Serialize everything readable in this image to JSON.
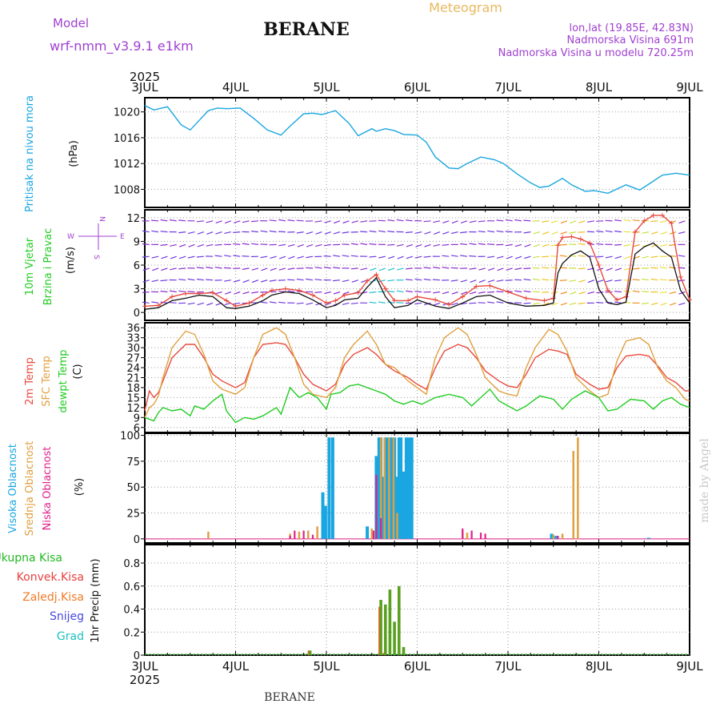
{
  "header": {
    "model_label": "Model",
    "model_name": "wrf-nmm_v3.9.1  e1km",
    "station": "BERANE",
    "meteogram": "Meteogram",
    "lonlat": "lon,lat (19.85E, 42.83N)",
    "elevation": "Nadmorska Visina 691m",
    "model_elevation": "Nadmorska Visina u modelu 720.25m",
    "year_top": "2025",
    "year_bottom": "2025",
    "footer_station": "BERANE",
    "watermark": "made by Angel"
  },
  "colors": {
    "pressure": "#1aa6e0",
    "temp2m": "#e84a3e",
    "sfc": "#e0a040",
    "dewpt": "#22cc22",
    "high": "#1aa6e0",
    "mid": "#e0a040",
    "low": "#e0208a",
    "total": "#22b822",
    "conv": "#e84040",
    "frozen": "#f07a28",
    "snow": "#4848e0",
    "grad": "#20c0c0",
    "purple": "#a040d0",
    "gold": "#e8b860"
  },
  "chart_data": [
    {
      "type": "line",
      "title": "",
      "ylabel_lines": [
        "Pritisak na nivou mora",
        "(hPa)"
      ],
      "x_ticks": [
        "3JUL",
        "4JUL",
        "5JUL",
        "6JUL",
        "7JUL",
        "8JUL",
        "9JUL"
      ],
      "ylim": [
        1005.2,
        1022.2
      ],
      "y_ticks": [
        1008,
        1012,
        1016,
        1020
      ],
      "series": [
        {
          "x": [
            0,
            0.1,
            0.25,
            0.4,
            0.5,
            0.7,
            0.8,
            0.9,
            1.05,
            1.2,
            1.35,
            1.5,
            1.6,
            1.75,
            1.85,
            1.95,
            2.1,
            2.25,
            2.35,
            2.5,
            2.55,
            2.65,
            2.75,
            2.85,
            3.0,
            3.1,
            3.2,
            3.35,
            3.45,
            3.55,
            3.7,
            3.85,
            3.95,
            4.1,
            4.25,
            4.35,
            4.45,
            4.6,
            4.7,
            4.85,
            4.95,
            5.1,
            5.3,
            5.45,
            5.55,
            5.7,
            5.85,
            6.0
          ],
          "values": [
            1021.0,
            1020.3,
            1020.8,
            1018.0,
            1017.2,
            1020.2,
            1020.6,
            1020.5,
            1020.6,
            1019.0,
            1017.2,
            1016.4,
            1017.8,
            1019.7,
            1019.8,
            1019.6,
            1020.2,
            1018.2,
            1016.3,
            1017.4,
            1017.0,
            1017.4,
            1017.1,
            1016.5,
            1016.4,
            1015.3,
            1013.0,
            1011.3,
            1011.2,
            1012.0,
            1013.0,
            1012.6,
            1012.0,
            1010.4,
            1009.0,
            1008.3,
            1008.5,
            1009.7,
            1008.7,
            1007.7,
            1007.8,
            1007.4,
            1008.7,
            1007.9,
            1008.8,
            1010.2,
            1010.5,
            1010.2
          ]
        }
      ]
    },
    {
      "type": "line",
      "title": "",
      "ylabel_lines": [
        "10m Vjetar",
        "Brzina i Pravac",
        "(m/s)"
      ],
      "compass": [
        "N",
        "S",
        "W",
        "E"
      ],
      "x_ticks": [
        "3JUL",
        "4JUL",
        "5JUL",
        "6JUL",
        "7JUL",
        "8JUL",
        "9JUL"
      ],
      "ylim": [
        -1,
        13
      ],
      "y_ticks": [
        0,
        3,
        6,
        9,
        12
      ],
      "series": [
        {
          "name": "speed",
          "x": [
            0,
            0.15,
            0.3,
            0.45,
            0.6,
            0.75,
            0.9,
            1.0,
            1.15,
            1.3,
            1.4,
            1.55,
            1.7,
            1.85,
            2.0,
            2.1,
            2.2,
            2.35,
            2.45,
            2.55,
            2.65,
            2.75,
            2.9,
            3.0,
            3.2,
            3.35,
            3.5,
            3.65,
            3.8,
            4.0,
            4.2,
            4.4,
            4.5,
            4.55,
            4.6,
            4.7,
            4.8,
            4.9,
            5.0,
            5.1,
            5.2,
            5.3,
            5.4,
            5.5,
            5.6,
            5.7,
            5.8,
            5.9,
            6.0
          ],
          "values": [
            0.4,
            0.6,
            1.5,
            1.8,
            2.2,
            2.0,
            0.6,
            0.5,
            0.8,
            1.5,
            2.2,
            2.6,
            2.4,
            1.6,
            0.6,
            0.9,
            1.6,
            1.8,
            3.2,
            4.4,
            2.0,
            0.6,
            0.9,
            1.6,
            0.8,
            0.5,
            1.2,
            2.0,
            2.2,
            1.2,
            0.8,
            0.9,
            1.2,
            5.0,
            6.2,
            7.3,
            7.8,
            7.0,
            3.0,
            1.2,
            1.0,
            1.3,
            7.4,
            8.3,
            8.8,
            7.8,
            7.0,
            2.8,
            1.2
          ]
        },
        {
          "name": "gust",
          "x": [
            0,
            0.15,
            0.3,
            0.45,
            0.6,
            0.75,
            0.9,
            1.0,
            1.15,
            1.3,
            1.4,
            1.55,
            1.7,
            1.85,
            2.0,
            2.1,
            2.2,
            2.35,
            2.45,
            2.55,
            2.65,
            2.75,
            2.9,
            3.0,
            3.2,
            3.35,
            3.5,
            3.65,
            3.8,
            4.0,
            4.2,
            4.4,
            4.5,
            4.55,
            4.6,
            4.7,
            4.8,
            4.9,
            5.0,
            5.1,
            5.2,
            5.3,
            5.4,
            5.5,
            5.6,
            5.7,
            5.8,
            5.9,
            6.0
          ],
          "values": [
            0.8,
            0.9,
            2.0,
            2.4,
            2.4,
            2.5,
            1.5,
            0.8,
            1.2,
            2.2,
            2.8,
            3.0,
            2.8,
            2.2,
            1.2,
            1.5,
            2.2,
            2.5,
            4.0,
            4.8,
            3.0,
            1.5,
            1.5,
            2.0,
            1.6,
            1.0,
            2.0,
            3.3,
            3.4,
            2.6,
            1.8,
            1.5,
            1.8,
            8.5,
            9.5,
            9.6,
            9.3,
            8.8,
            6.0,
            2.8,
            1.6,
            2.0,
            10.2,
            11.6,
            12.3,
            12.3,
            11.3,
            4.5,
            1.6
          ]
        }
      ]
    },
    {
      "type": "line",
      "title": "",
      "ylabel_lines": [
        "2m Temp",
        "SFC Temp",
        "dewpt Temp",
        "(C)"
      ],
      "x_ticks": [
        "3JUL",
        "4JUL",
        "5JUL",
        "6JUL",
        "7JUL",
        "8JUL",
        "9JUL"
      ],
      "ylim": [
        4.5,
        37.5
      ],
      "y_ticks": [
        6,
        9,
        12,
        15,
        18,
        21,
        24,
        27,
        30,
        33,
        36
      ],
      "series": [
        {
          "name": "2m Temp",
          "x": [
            0,
            0.05,
            0.1,
            0.15,
            0.2,
            0.3,
            0.45,
            0.55,
            0.65,
            0.75,
            0.85,
            1.0,
            1.1,
            1.2,
            1.3,
            1.45,
            1.55,
            1.65,
            1.75,
            1.85,
            2.0,
            2.1,
            2.2,
            2.3,
            2.45,
            2.55,
            2.65,
            2.75,
            2.9,
            3.0,
            3.1,
            3.2,
            3.3,
            3.45,
            3.55,
            3.65,
            3.75,
            3.9,
            4.0,
            4.1,
            4.2,
            4.3,
            4.45,
            4.55,
            4.65,
            4.75,
            4.9,
            5.0,
            5.1,
            5.2,
            5.3,
            5.45,
            5.55,
            5.65,
            5.75,
            5.85,
            5.95,
            6.0
          ],
          "values": [
            11.0,
            17.0,
            15.0,
            16.5,
            20.0,
            27.0,
            31.0,
            31.0,
            27.0,
            22.0,
            20.0,
            18.0,
            19.5,
            27.0,
            31.0,
            31.5,
            31.0,
            27.0,
            22.0,
            19.0,
            17.0,
            19.0,
            25.0,
            28.0,
            30.0,
            28.0,
            25.0,
            23.0,
            21.0,
            19.0,
            17.5,
            24.0,
            29.0,
            31.0,
            30.0,
            27.0,
            23.0,
            20.0,
            18.5,
            18.0,
            22.0,
            27.0,
            29.5,
            29.0,
            28.0,
            22.0,
            19.0,
            17.5,
            18.0,
            24.0,
            27.5,
            28.0,
            27.5,
            24.5,
            21.0,
            19.5,
            17.0,
            17.0
          ]
        },
        {
          "name": "SFC Temp",
          "x": [
            0,
            0.05,
            0.1,
            0.15,
            0.2,
            0.3,
            0.45,
            0.55,
            0.65,
            0.75,
            0.85,
            1.0,
            1.1,
            1.2,
            1.3,
            1.45,
            1.55,
            1.65,
            1.75,
            1.85,
            2.0,
            2.1,
            2.2,
            2.3,
            2.45,
            2.55,
            2.65,
            2.75,
            2.9,
            3.0,
            3.1,
            3.2,
            3.3,
            3.45,
            3.55,
            3.65,
            3.75,
            3.9,
            4.0,
            4.1,
            4.2,
            4.3,
            4.45,
            4.55,
            4.65,
            4.75,
            4.9,
            5.0,
            5.1,
            5.2,
            5.3,
            5.45,
            5.55,
            5.65,
            5.75,
            5.85,
            5.95,
            6.0
          ],
          "values": [
            9.0,
            12.0,
            13.0,
            15.5,
            21.0,
            30.0,
            35.0,
            34.0,
            28.0,
            20.0,
            17.5,
            16.0,
            18.0,
            27.0,
            34.0,
            36.0,
            34.0,
            27.0,
            19.0,
            16.0,
            15.0,
            18.0,
            27.0,
            31.0,
            35.0,
            31.0,
            25.0,
            24.0,
            20.0,
            18.0,
            16.0,
            27.0,
            33.0,
            36.0,
            34.0,
            28.0,
            21.0,
            17.0,
            16.0,
            15.5,
            24.0,
            30.0,
            35.5,
            34.0,
            29.0,
            21.0,
            17.0,
            15.0,
            16.0,
            26.0,
            32.0,
            33.0,
            31.0,
            24.0,
            20.0,
            18.0,
            14.5,
            14.0
          ]
        },
        {
          "name": "dewpt Temp",
          "x": [
            0,
            0.1,
            0.15,
            0.2,
            0.3,
            0.4,
            0.5,
            0.55,
            0.65,
            0.75,
            0.85,
            0.9,
            1.0,
            1.1,
            1.2,
            1.3,
            1.45,
            1.5,
            1.6,
            1.7,
            1.8,
            1.9,
            2.0,
            2.05,
            2.15,
            2.25,
            2.35,
            2.45,
            2.55,
            2.65,
            2.75,
            2.85,
            2.95,
            3.05,
            3.2,
            3.35,
            3.5,
            3.6,
            3.7,
            3.8,
            3.9,
            4.0,
            4.1,
            4.2,
            4.35,
            4.5,
            4.6,
            4.7,
            4.85,
            5.0,
            5.1,
            5.2,
            5.35,
            5.5,
            5.6,
            5.7,
            5.8,
            5.9,
            6.0
          ],
          "values": [
            9.0,
            8.0,
            10.5,
            12.0,
            11.0,
            11.5,
            9.5,
            12.5,
            11.5,
            14.0,
            16.0,
            11.0,
            7.5,
            9.0,
            8.5,
            9.5,
            12.0,
            10.0,
            18.0,
            15.0,
            16.5,
            15.0,
            11.5,
            16.0,
            16.5,
            18.5,
            19.0,
            18.0,
            17.0,
            16.0,
            14.0,
            13.0,
            14.0,
            13.0,
            15.0,
            16.0,
            15.0,
            12.5,
            15.0,
            17.5,
            14.0,
            12.5,
            11.0,
            12.5,
            15.5,
            14.5,
            11.5,
            14.5,
            17.0,
            15.0,
            11.0,
            11.5,
            14.5,
            14.0,
            11.5,
            14.0,
            15.0,
            13.0,
            12.0
          ]
        }
      ]
    },
    {
      "type": "bar",
      "title": "",
      "ylabel_lines": [
        "Visoka Oblacnost",
        "Srednja Oblacnost",
        "Niska Oblacnost",
        "(%)"
      ],
      "x_ticks": [
        "3JUL",
        "4JUL",
        "5JUL",
        "6JUL",
        "7JUL",
        "8JUL",
        "9JUL"
      ],
      "ylim": [
        -4,
        102
      ],
      "y_ticks": [
        0,
        25,
        50,
        75,
        100
      ],
      "series": [
        {
          "name": "Visoka Oblacnost",
          "x": [
            1.96,
            1.99,
            2.03,
            2.07,
            2.45,
            2.55,
            2.58,
            2.6,
            2.62,
            2.65,
            2.67,
            2.7,
            2.72,
            2.75,
            2.77,
            2.8,
            2.82,
            2.85,
            2.88,
            2.91,
            2.94,
            4.48,
            4.53,
            5.55
          ],
          "values": [
            45,
            32,
            98,
            98,
            12,
            80,
            98,
            98,
            60,
            98,
            98,
            98,
            98,
            98,
            60,
            98,
            98,
            65,
            98,
            98,
            98,
            5,
            3,
            1
          ]
        },
        {
          "name": "Srednja Oblacnost",
          "x": [
            0.7,
            1.6,
            1.7,
            1.8,
            1.9,
            2.5,
            2.6,
            2.64,
            2.69,
            2.74,
            2.78,
            3.5,
            3.55,
            4.5,
            4.6,
            4.72,
            4.77
          ],
          "values": [
            7,
            5,
            7,
            8,
            12,
            10,
            98,
            98,
            98,
            98,
            25,
            8,
            6,
            4,
            5,
            85,
            98
          ]
        },
        {
          "name": "Niska Oblacnost",
          "x": [
            1.6,
            1.65,
            1.75,
            1.85,
            2.52,
            2.55,
            2.6,
            3.5,
            3.6,
            3.7,
            3.75,
            4.55
          ],
          "values": [
            3,
            8,
            8,
            4,
            8,
            62,
            20,
            10,
            8,
            6,
            5,
            3
          ]
        }
      ]
    },
    {
      "type": "bar",
      "title": "",
      "ylabel_lines": [
        "1hr Precip (mm)"
      ],
      "x_ticks": [
        "3JUL",
        "4JUL",
        "5JUL",
        "6JUL",
        "7JUL",
        "8JUL",
        "9JUL"
      ],
      "ylim": [
        0,
        0.96
      ],
      "y_ticks": [
        0,
        0.2,
        0.4,
        0.6,
        0.8
      ],
      "series": [
        {
          "name": "Ukupna Kisa",
          "x": [
            1.82,
            2.6,
            2.65,
            2.7,
            2.75,
            2.8,
            2.85
          ],
          "values": [
            0.04,
            0.48,
            0.44,
            0.57,
            0.29,
            0.6,
            0.07
          ]
        },
        {
          "name": "Konvek.Kisa",
          "x": [
            1.82,
            2.6,
            2.65
          ],
          "values": [
            0.04,
            0.42,
            0.02
          ]
        },
        {
          "name": "Zaledj.Kisa",
          "x": [],
          "values": []
        },
        {
          "name": "Snijeg",
          "x": [],
          "values": []
        },
        {
          "name": "Grad",
          "x": [],
          "values": []
        }
      ]
    }
  ]
}
